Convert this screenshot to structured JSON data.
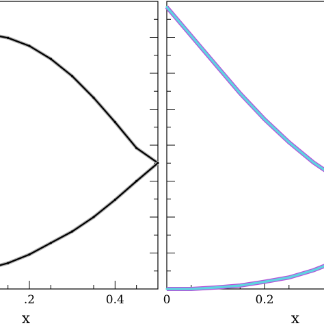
{
  "chart_data": [
    {
      "type": "line",
      "panel": "left",
      "title": "",
      "xlabel": "x",
      "ylabel": "",
      "xlim": [
        0.125,
        0.5
      ],
      "ylim": [
        0,
        1
      ],
      "x_ticks": [
        0.2,
        0.4
      ],
      "x_tick_labels": [
        ".2",
        "0.4"
      ],
      "grid": false,
      "series": [
        {
          "color": "#000000",
          "style": "solid",
          "x": [
            0.125,
            0.15,
            0.2,
            0.25,
            0.3,
            0.35,
            0.4,
            0.45,
            0.5
          ],
          "y": [
            0.88,
            0.873,
            0.845,
            0.8,
            0.74,
            0.665,
            0.58,
            0.49,
            0.438
          ]
        },
        {
          "color": "#000000",
          "style": "solid",
          "x": [
            0.125,
            0.15,
            0.2,
            0.25,
            0.3,
            0.35,
            0.4,
            0.45,
            0.5
          ],
          "y": [
            0.08,
            0.09,
            0.12,
            0.16,
            0.2,
            0.25,
            0.31,
            0.375,
            0.438
          ]
        }
      ]
    },
    {
      "type": "line",
      "panel": "right",
      "title": "",
      "xlabel": "x",
      "ylabel": "",
      "xlim": [
        0,
        0.33
      ],
      "ylim": [
        0,
        1
      ],
      "x_ticks": [
        0,
        0.2
      ],
      "x_tick_labels": [
        "0",
        "0.2"
      ],
      "grid": false,
      "series": [
        {
          "color": "#5fd3e0",
          "style": "solid",
          "x": [
            0,
            0.05,
            0.1,
            0.15,
            0.2,
            0.25,
            0.3,
            0.33
          ],
          "y": [
            0.98,
            0.88,
            0.78,
            0.68,
            0.59,
            0.51,
            0.44,
            0.405
          ]
        },
        {
          "color": "#5fd3e0",
          "style": "solid",
          "x": [
            0,
            0.05,
            0.1,
            0.15,
            0.2,
            0.25,
            0.3,
            0.33
          ],
          "y": [
            0.0,
            0.0,
            0.005,
            0.012,
            0.025,
            0.04,
            0.065,
            0.085
          ]
        }
      ]
    }
  ]
}
